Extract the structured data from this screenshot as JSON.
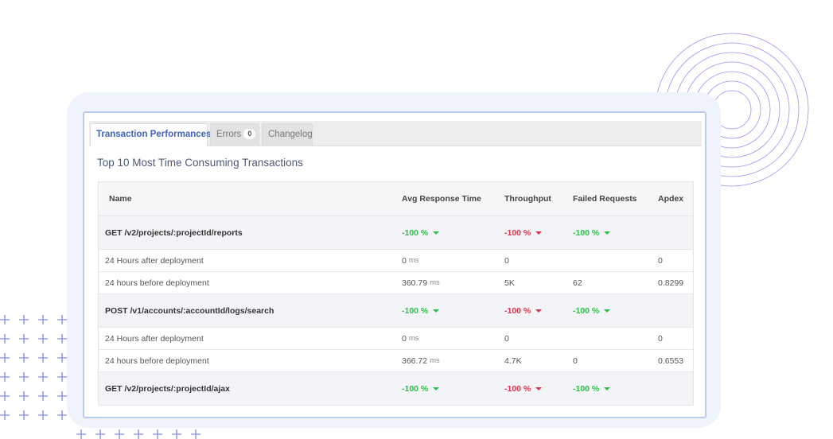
{
  "tabs": [
    {
      "label": "Transaction Performances",
      "active": true
    },
    {
      "label": "Errors",
      "badge": "0",
      "active": false
    },
    {
      "label": "Changelog",
      "active": false
    }
  ],
  "panel_title": "Top 10 Most Time Consuming Transactions",
  "columns": {
    "name": "Name",
    "avg": "Avg Response Time",
    "throughput": "Throughput",
    "failed": "Failed Requests",
    "apdex": "Apdex"
  },
  "groups": [
    {
      "name": "GET /v2/projects/:projectId/reports",
      "avg_change": "-100 %",
      "throughput_change": "-100 %",
      "failed_change": "-100 %",
      "after": {
        "label": "24 Hours after deployment",
        "avg": "0",
        "avg_unit": "ms",
        "throughput": "0",
        "failed": "",
        "apdex": "0"
      },
      "before": {
        "label": "24 hours before deployment",
        "avg": "360.79",
        "avg_unit": "ms",
        "throughput": "5K",
        "failed": "62",
        "apdex": "0.8299"
      }
    },
    {
      "name": "POST /v1/accounts/:accountId/logs/search",
      "avg_change": "-100 %",
      "throughput_change": "-100 %",
      "failed_change": "-100 %",
      "after": {
        "label": "24 Hours after deployment",
        "avg": "0",
        "avg_unit": "ms",
        "throughput": "0",
        "failed": "",
        "apdex": "0"
      },
      "before": {
        "label": "24 hours before deployment",
        "avg": "366.72",
        "avg_unit": "ms",
        "throughput": "4.7K",
        "failed": "0",
        "apdex": "0.6553"
      }
    },
    {
      "name": "GET /v2/projects/:projectId/ajax",
      "avg_change": "-100 %",
      "throughput_change": "-100 %",
      "failed_change": "-100 %"
    }
  ],
  "colors": {
    "accent": "#3e63bf",
    "positive": "#2cbf4a",
    "negative": "#d9364b",
    "decoration": "#6b74e8"
  }
}
